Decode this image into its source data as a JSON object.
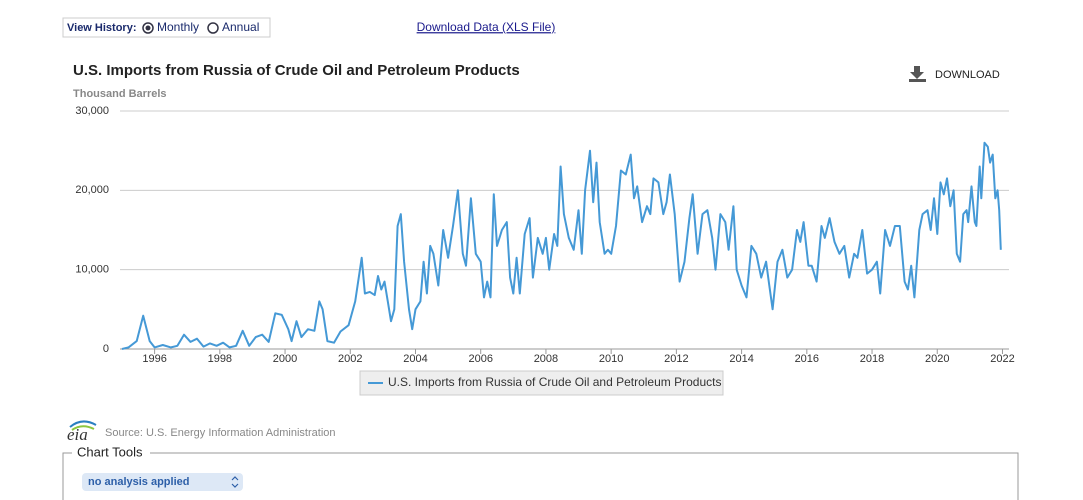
{
  "ui": {
    "view_history_label": "View History:",
    "monthly": "Monthly",
    "annual": "Annual",
    "download_data": "Download Data (XLS File)",
    "download": "DOWNLOAD",
    "logo": "eia",
    "source": "Source: U.S. Energy Information Administration",
    "chart_tools": "Chart Tools",
    "analysis": "no analysis applied"
  },
  "chart_data": {
    "type": "line",
    "title": "U.S. Imports from Russia of Crude Oil and Petroleum Products",
    "subtitle": "Thousand Barrels",
    "x": [
      1995.0,
      1995.2,
      1995.45,
      1995.65,
      1995.85,
      1996.0,
      1996.25,
      1996.5,
      1996.7,
      1996.9,
      1997.1,
      1997.3,
      1997.5,
      1997.7,
      1997.9,
      1998.1,
      1998.3,
      1998.5,
      1998.7,
      1998.9,
      1999.1,
      1999.3,
      1999.5,
      1999.7,
      1999.9,
      2000.1,
      2000.2,
      2000.35,
      2000.5,
      2000.7,
      2000.9,
      2001.05,
      2001.15,
      2001.3,
      2001.5,
      2001.7,
      2001.95,
      2002.15,
      2002.35,
      2002.45,
      2002.6,
      2002.75,
      2002.85,
      2002.95,
      2003.05,
      2003.15,
      2003.25,
      2003.35,
      2003.45,
      2003.55,
      2003.65,
      2003.8,
      2003.9,
      2004.0,
      2004.15,
      2004.25,
      2004.35,
      2004.45,
      2004.55,
      2004.7,
      2004.85,
      2005.0,
      2005.15,
      2005.3,
      2005.45,
      2005.55,
      2005.7,
      2005.85,
      2006.0,
      2006.1,
      2006.2,
      2006.3,
      2006.4,
      2006.5,
      2006.65,
      2006.8,
      2006.9,
      2007.0,
      2007.1,
      2007.2,
      2007.35,
      2007.5,
      2007.6,
      2007.75,
      2007.9,
      2008.0,
      2008.1,
      2008.25,
      2008.35,
      2008.45,
      2008.55,
      2008.7,
      2008.85,
      2009.0,
      2009.1,
      2009.2,
      2009.35,
      2009.45,
      2009.55,
      2009.65,
      2009.8,
      2009.9,
      2010.0,
      2010.15,
      2010.3,
      2010.45,
      2010.6,
      2010.7,
      2010.8,
      2010.95,
      2011.1,
      2011.2,
      2011.3,
      2011.45,
      2011.6,
      2011.7,
      2011.8,
      2011.95,
      2012.1,
      2012.25,
      2012.4,
      2012.5,
      2012.65,
      2012.8,
      2012.95,
      2013.1,
      2013.2,
      2013.35,
      2013.5,
      2013.6,
      2013.75,
      2013.85,
      2014.0,
      2014.15,
      2014.3,
      2014.45,
      2014.6,
      2014.75,
      2014.85,
      2014.95,
      2015.1,
      2015.25,
      2015.4,
      2015.55,
      2015.7,
      2015.8,
      2015.9,
      2016.05,
      2016.15,
      2016.3,
      2016.45,
      2016.55,
      2016.7,
      2016.85,
      2017.0,
      2017.15,
      2017.3,
      2017.45,
      2017.55,
      2017.7,
      2017.85,
      2018.0,
      2018.15,
      2018.25,
      2018.4,
      2018.55,
      2018.7,
      2018.85,
      2019.0,
      2019.1,
      2019.2,
      2019.3,
      2019.45,
      2019.55,
      2019.7,
      2019.8,
      2019.9,
      2020.0,
      2020.1,
      2020.2,
      2020.3,
      2020.4,
      2020.5,
      2020.6,
      2020.7,
      2020.8,
      2020.9,
      2020.95,
      2021.05,
      2021.15,
      2021.2,
      2021.3,
      2021.35,
      2021.45,
      2021.55,
      2021.62,
      2021.7,
      2021.78,
      2021.85,
      2021.9,
      2021.95
    ],
    "series": [
      {
        "name": "U.S. Imports from Russia of Crude Oil and Petroleum Products",
        "color": "#4599d6",
        "values": [
          0,
          200,
          1000,
          4200,
          1000,
          200,
          500,
          200,
          400,
          1800,
          900,
          1300,
          300,
          700,
          400,
          800,
          200,
          400,
          2300,
          400,
          1500,
          1800,
          900,
          4500,
          4300,
          2500,
          1000,
          3500,
          1500,
          2500,
          2300,
          6000,
          5000,
          1000,
          800,
          2200,
          3000,
          6000,
          11500,
          7000,
          7200,
          6800,
          9200,
          7500,
          8500,
          6000,
          3500,
          5000,
          15500,
          17000,
          11000,
          5000,
          2500,
          5000,
          6000,
          11000,
          7000,
          13000,
          12000,
          8000,
          15000,
          11500,
          15500,
          20000,
          12000,
          10500,
          19000,
          12000,
          11000,
          6500,
          8500,
          6500,
          19500,
          13000,
          15000,
          16000,
          9000,
          7000,
          11500,
          7000,
          14500,
          16500,
          9000,
          14000,
          12000,
          14000,
          10000,
          14500,
          13000,
          23000,
          17000,
          14000,
          12500,
          17500,
          12000,
          20000,
          25000,
          18500,
          23500,
          16000,
          12000,
          12500,
          12000,
          15500,
          22500,
          22000,
          24500,
          19000,
          20500,
          16000,
          18000,
          17000,
          21500,
          21000,
          17000,
          18500,
          22000,
          17000,
          8500,
          11000,
          16500,
          19500,
          12000,
          17000,
          17500,
          14000,
          10000,
          17000,
          16000,
          12500,
          18000,
          10000,
          8000,
          6500,
          13000,
          12000,
          9000,
          11000,
          8000,
          5000,
          11000,
          12500,
          9000,
          10000,
          15000,
          13500,
          16000,
          10500,
          10500,
          8500,
          15500,
          14000,
          16500,
          13500,
          12000,
          13000,
          9000,
          12000,
          11500,
          15000,
          9500,
          10000,
          11000,
          7000,
          15000,
          13000,
          15500,
          15500,
          8500,
          7500,
          10500,
          6500,
          15000,
          17000,
          17500,
          15000,
          19000,
          14500,
          21000,
          19500,
          21500,
          18000,
          20000,
          12000,
          11000,
          17000,
          17500,
          16000,
          20500,
          16000,
          15500,
          23000,
          19000,
          26000,
          25500,
          23500,
          24500,
          19000,
          20000,
          17500,
          12500
        ]
      }
    ],
    "xlim": [
      1995,
      2022.2
    ],
    "ylim": [
      0,
      30000
    ],
    "xticks": [
      1996,
      1998,
      2000,
      2002,
      2004,
      2006,
      2008,
      2010,
      2012,
      2014,
      2016,
      2018,
      2020,
      2022
    ],
    "yticks": [
      0,
      {
        "value": 10000,
        "label": "10,000"
      },
      {
        "value": 20000,
        "label": "20,000"
      },
      {
        "value": 30000,
        "label": "30,000"
      }
    ],
    "grid": true
  }
}
